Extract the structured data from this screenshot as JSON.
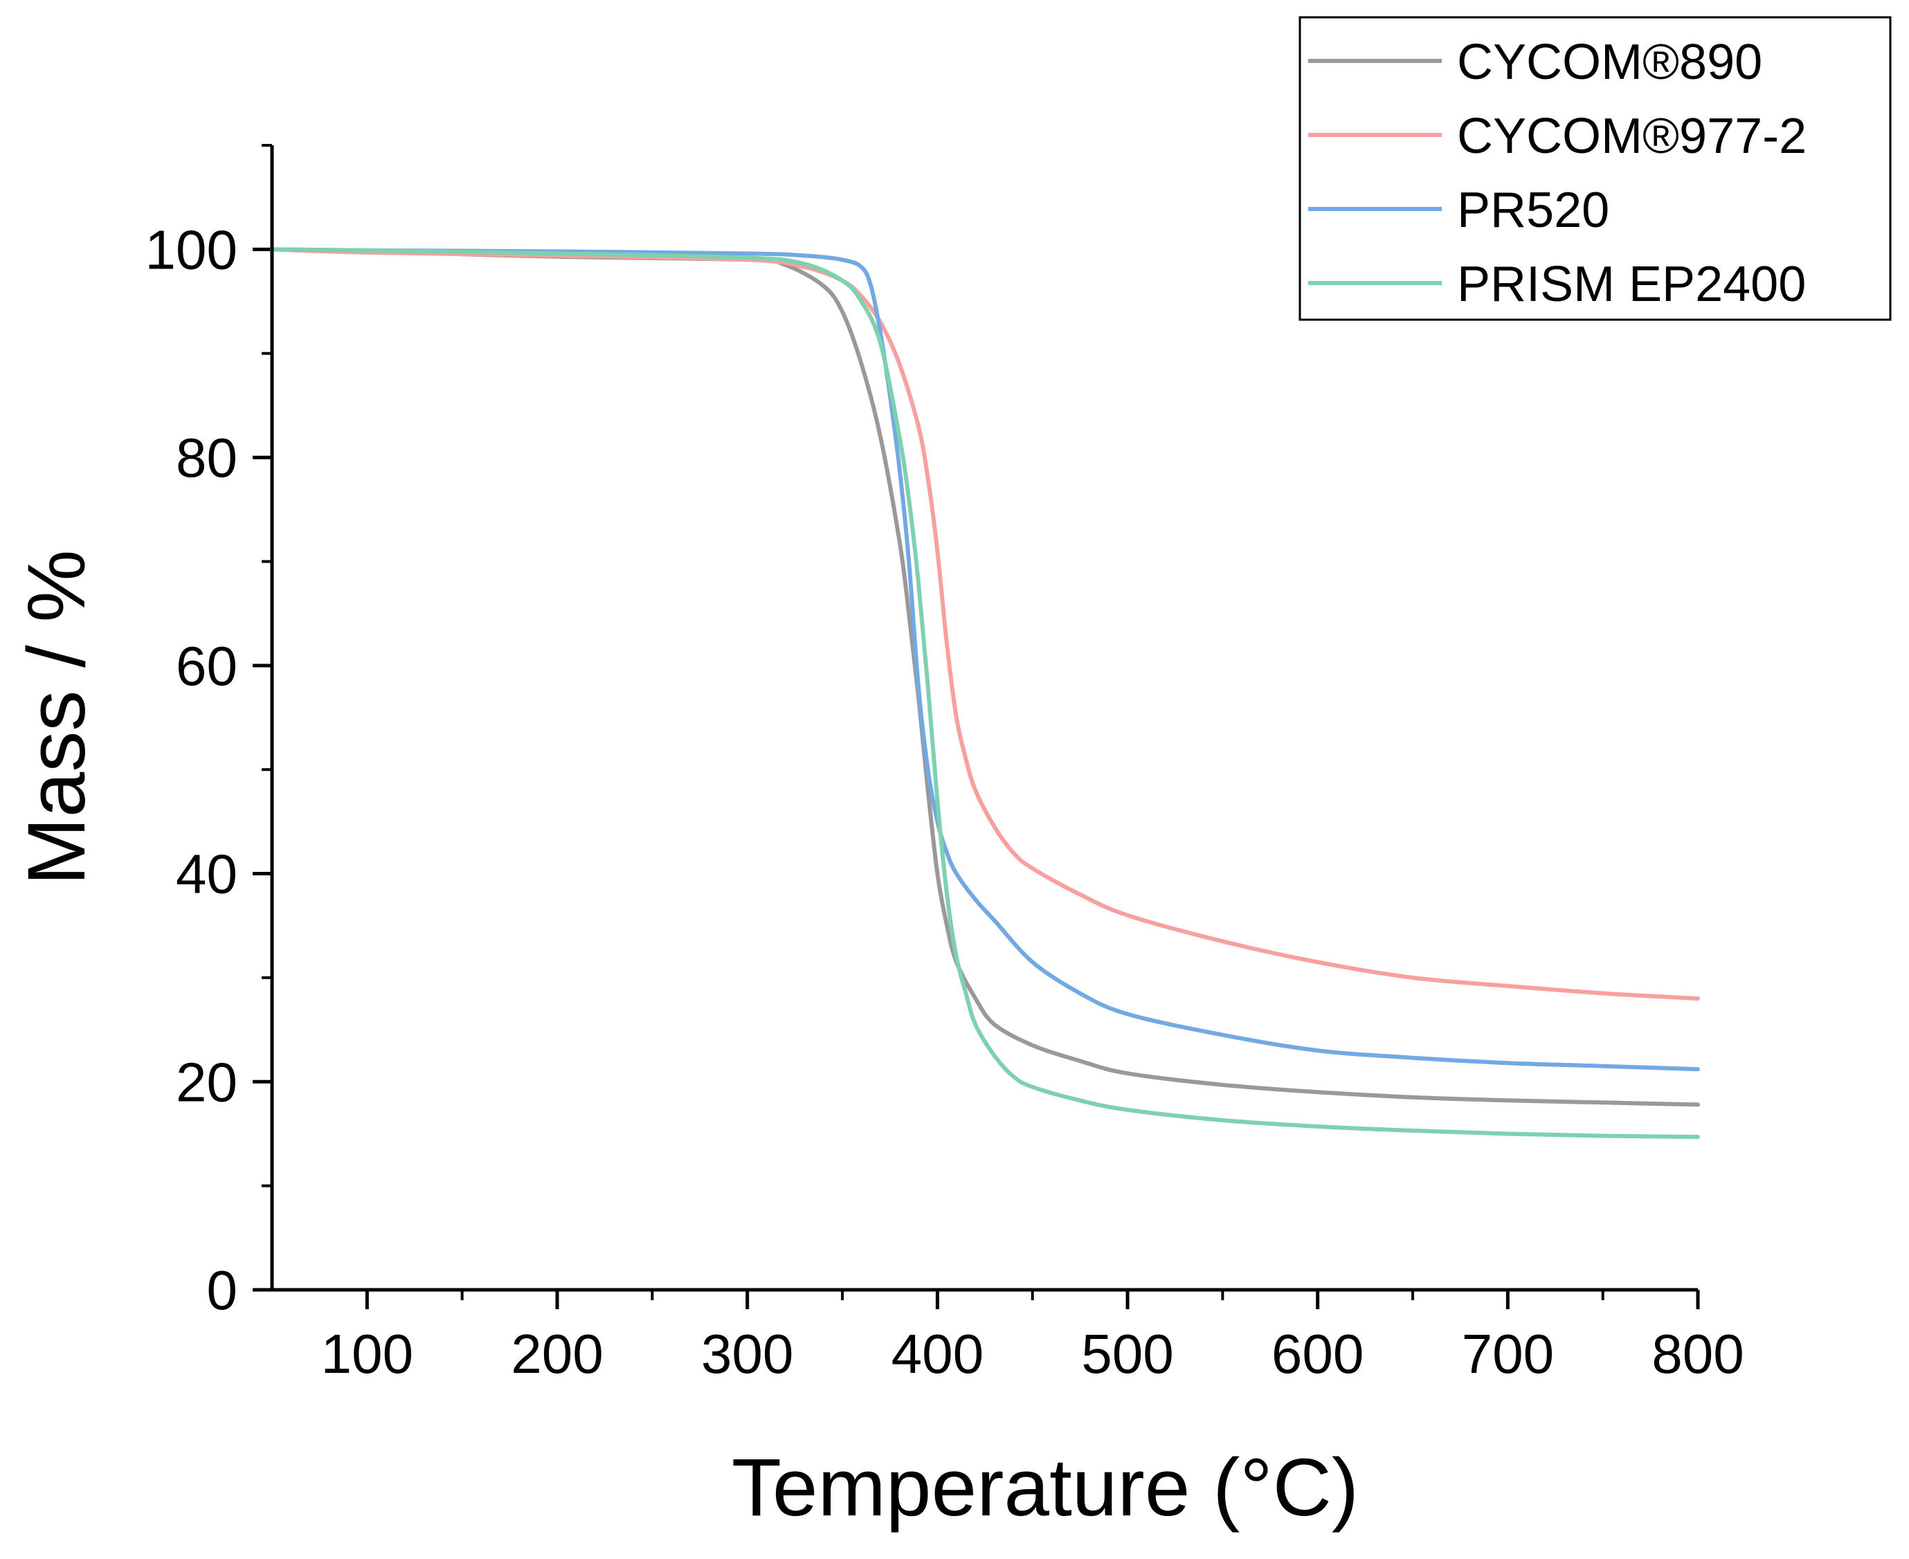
{
  "chart_data": {
    "type": "line",
    "xlabel": "Temperature (°C)",
    "ylabel": "Mass / %",
    "xlim": [
      50,
      800
    ],
    "ylim": [
      0,
      110
    ],
    "xticks": [
      100,
      200,
      300,
      400,
      500,
      600,
      700,
      800
    ],
    "xtick_labels": [
      "100",
      "200",
      "300",
      "400",
      "500",
      "600",
      "700",
      "800"
    ],
    "yticks": [
      0,
      20,
      40,
      60,
      80,
      100
    ],
    "ytick_labels": [
      "0",
      "20",
      "40",
      "60",
      "80",
      "100"
    ],
    "legend_position": "top-right",
    "grid": false,
    "series": [
      {
        "name": "CYCOM®890",
        "color": "#999999",
        "x": [
          50,
          100,
          200,
          300,
          320,
          340,
          350,
          360,
          370,
          380,
          385,
          390,
          395,
          400,
          405,
          410,
          420,
          430,
          450,
          475,
          500,
          550,
          600,
          650,
          700,
          750,
          800
        ],
        "y": [
          100,
          99.8,
          99.3,
          99.0,
          98.5,
          96.5,
          94.0,
          89.0,
          82.0,
          72.0,
          65.0,
          57.0,
          48.0,
          40.0,
          35.0,
          31.5,
          28.0,
          25.5,
          23.5,
          22.0,
          20.8,
          19.7,
          19.0,
          18.5,
          18.2,
          18.0,
          17.8
        ]
      },
      {
        "name": "CYCOM®977-2",
        "color": "#F89F9F",
        "x": [
          50,
          100,
          200,
          300,
          330,
          350,
          360,
          370,
          380,
          390,
          395,
          400,
          405,
          410,
          415,
          420,
          430,
          440,
          450,
          475,
          500,
          550,
          600,
          650,
          700,
          750,
          800
        ],
        "y": [
          100,
          99.7,
          99.4,
          99.0,
          98.3,
          97.0,
          95.5,
          93.0,
          89.0,
          83.0,
          78.0,
          71.0,
          62.0,
          55.0,
          51.0,
          48.0,
          44.5,
          42.0,
          40.5,
          38.0,
          36.0,
          33.5,
          31.5,
          30.0,
          29.2,
          28.5,
          28.0
        ]
      },
      {
        "name": "PR520",
        "color": "#72A9E3",
        "x": [
          50,
          100,
          200,
          300,
          330,
          350,
          360,
          365,
          370,
          375,
          380,
          385,
          390,
          395,
          400,
          405,
          410,
          420,
          430,
          450,
          475,
          500,
          550,
          600,
          650,
          700,
          750,
          800
        ],
        "y": [
          100,
          99.9,
          99.8,
          99.6,
          99.4,
          99.0,
          98.3,
          96.5,
          92.0,
          86.0,
          79.0,
          70.0,
          58.0,
          50.0,
          45.0,
          42.0,
          40.0,
          37.5,
          35.5,
          31.5,
          28.5,
          26.5,
          24.5,
          23.0,
          22.3,
          21.8,
          21.5,
          21.2
        ]
      },
      {
        "name": "PRISM EP2400",
        "color": "#7ED1AE",
        "x": [
          50,
          100,
          200,
          300,
          330,
          350,
          360,
          370,
          380,
          385,
          390,
          395,
          400,
          405,
          410,
          415,
          420,
          430,
          440,
          450,
          475,
          500,
          550,
          600,
          650,
          700,
          750,
          800
        ],
        "y": [
          100,
          99.9,
          99.6,
          99.2,
          98.6,
          97.0,
          95.0,
          91.0,
          82.0,
          76.0,
          68.0,
          58.0,
          47.0,
          38.0,
          32.0,
          28.5,
          25.5,
          22.5,
          20.5,
          19.5,
          18.2,
          17.3,
          16.3,
          15.7,
          15.3,
          15.0,
          14.8,
          14.7
        ]
      }
    ]
  }
}
